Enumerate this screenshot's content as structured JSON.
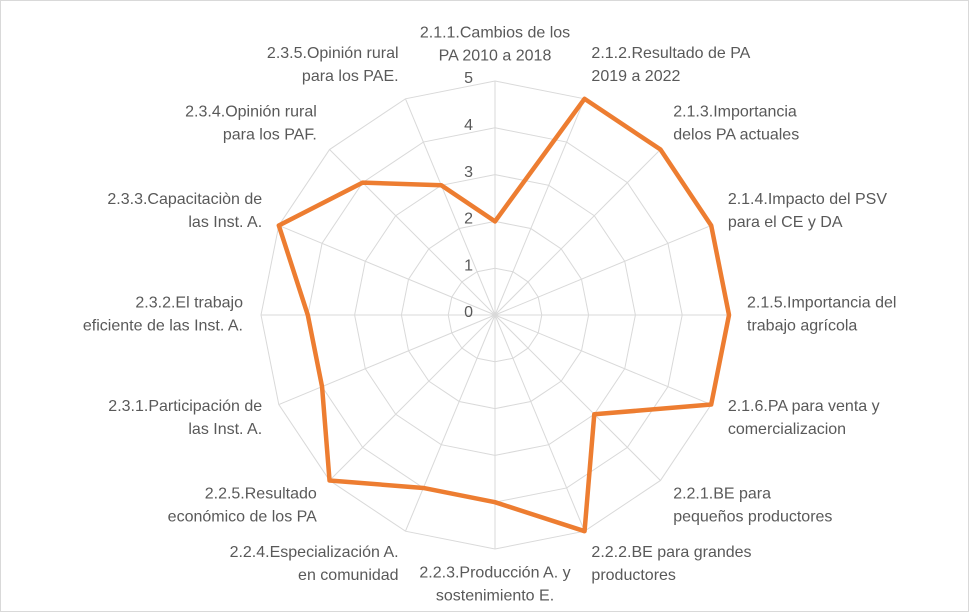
{
  "chart_data": {
    "type": "radar",
    "categories": [
      "2.1.1.Cambios de los\nPA 2010 a 2018",
      "2.1.2.Resultado de PA\n2019 a 2022",
      "2.1.3.Importancia\ndelos PA actuales",
      "2.1.4.Impacto del PSV\npara el CE y DA",
      "2.1.5.Importancia del\ntrabajo agrícola",
      "2.1.6.PA para venta y\ncomercializacion",
      "2.2.1.BE para\npequeños productores",
      "2.2.2.BE para grandes\nproductores",
      "2.2.3.Producción A. y\nsostenimiento E.",
      "2.2.4.Especialización A.\nen comunidad",
      "2.2.5.Resultado\neconómico de los PA",
      "2.3.1.Participación de\nlas Inst. A.",
      "2.3.2.El trabajo\neficiente de las Inst. A.",
      "2.3.3.Capacitaciòn de\nlas Inst. A.",
      "2.3.4.Opinión rural\npara los PAF.",
      "2.3.5.Opinión rural\npara los PAE."
    ],
    "values": [
      2,
      5,
      5,
      5,
      5,
      5,
      3,
      5,
      4,
      4,
      5,
      4,
      4,
      5,
      4,
      3
    ],
    "color": "#ed7d31",
    "ylim": [
      0,
      5
    ],
    "yticks": [
      0,
      1,
      2,
      3,
      4,
      5
    ],
    "grid": true
  }
}
